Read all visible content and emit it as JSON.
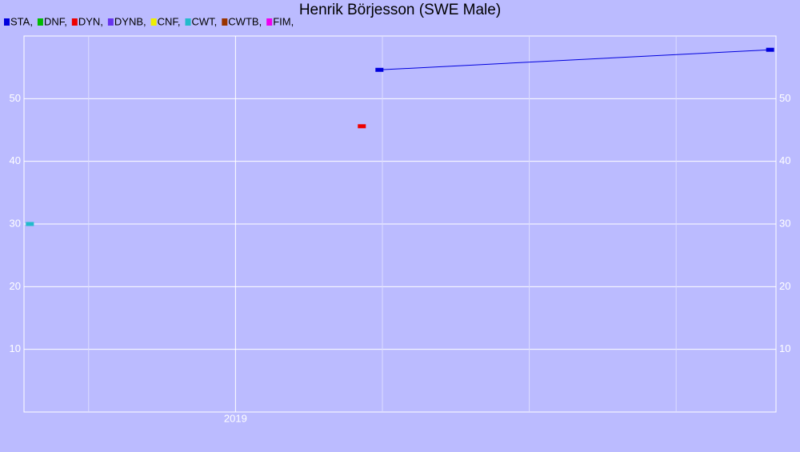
{
  "chart_data": {
    "type": "line",
    "title": "Henrik Börjesson (SWE Male)",
    "xlim": [
      2018.28,
      2020.84
    ],
    "xticks": [
      {
        "value": 2018.5,
        "label": null
      },
      2019,
      {
        "value": 2019.5,
        "label": null
      },
      {
        "value": 2020,
        "label": null
      },
      {
        "value": 2020.5,
        "label": null
      }
    ],
    "ylim": [
      0,
      60
    ],
    "yticks": [
      10,
      20,
      30,
      40,
      50
    ],
    "grid": true,
    "series": [
      {
        "name": "STA,",
        "color": "#0000dd",
        "x": [
          2019.49,
          2020.82
        ],
        "values": [
          54.6,
          57.8
        ]
      },
      {
        "name": "DNF,",
        "color": "#00bb00",
        "x": [],
        "values": []
      },
      {
        "name": "DYN,",
        "color": "#ee0000",
        "x": [
          2019.43
        ],
        "values": [
          45.6
        ]
      },
      {
        "name": "DYNB,",
        "color": "#6633ee",
        "x": [],
        "values": []
      },
      {
        "name": "CNF,",
        "color": "#eeee00",
        "x": [],
        "values": []
      },
      {
        "name": "CWT,",
        "color": "#22bbcc",
        "x": [
          2018.3
        ],
        "values": [
          30
        ]
      },
      {
        "name": "CWTB,",
        "color": "#993300",
        "x": [],
        "values": []
      },
      {
        "name": "FIM,",
        "color": "#ee00ee",
        "x": [],
        "values": []
      }
    ]
  }
}
